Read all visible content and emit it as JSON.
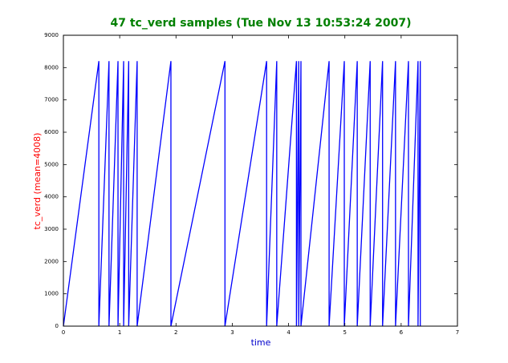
{
  "chart_data": {
    "type": "line",
    "title": "47 tc_verd samples (Tue Nov 13 10:53:24 2007)",
    "x_label": "time",
    "y_label": "tc_verd (mean=4008)",
    "x": [
      0,
      0.63,
      0.63,
      0.81,
      0.81,
      0.97,
      0.97,
      1.07,
      1.07,
      1.16,
      1.16,
      1.31,
      1.31,
      1.91,
      1.91,
      2.87,
      2.87,
      3.61,
      3.61,
      3.79,
      3.79,
      4.14,
      4.14,
      4.18,
      4.18,
      4.22,
      4.22,
      4.72,
      4.72,
      4.99,
      4.99,
      5.22,
      5.22,
      5.45,
      5.45,
      5.67,
      5.67,
      5.9,
      5.9,
      6.13,
      6.13,
      6.3,
      6.3,
      6.34,
      6.34
    ],
    "series": [
      {
        "color": "#0000ff",
        "values": [
          0,
          8200,
          0,
          8200,
          0,
          8200,
          0,
          8200,
          0,
          8200,
          0,
          8200,
          0,
          8200,
          0,
          8200,
          0,
          8200,
          0,
          8200,
          0,
          8200,
          0,
          8200,
          0,
          8200,
          0,
          8200,
          0,
          8200,
          0,
          8200,
          0,
          8200,
          0,
          8200,
          0,
          8200,
          0,
          8200,
          0,
          8200,
          0,
          8200,
          0
        ]
      }
    ],
    "xlim": [
      0,
      7
    ],
    "xticks": [
      0,
      1,
      2,
      3,
      4,
      5,
      6,
      7
    ],
    "ylim": [
      0,
      9000
    ],
    "yticks": [
      0,
      1000,
      2000,
      3000,
      4000,
      5000,
      6000,
      7000,
      8000,
      9000
    ],
    "grid": false
  }
}
